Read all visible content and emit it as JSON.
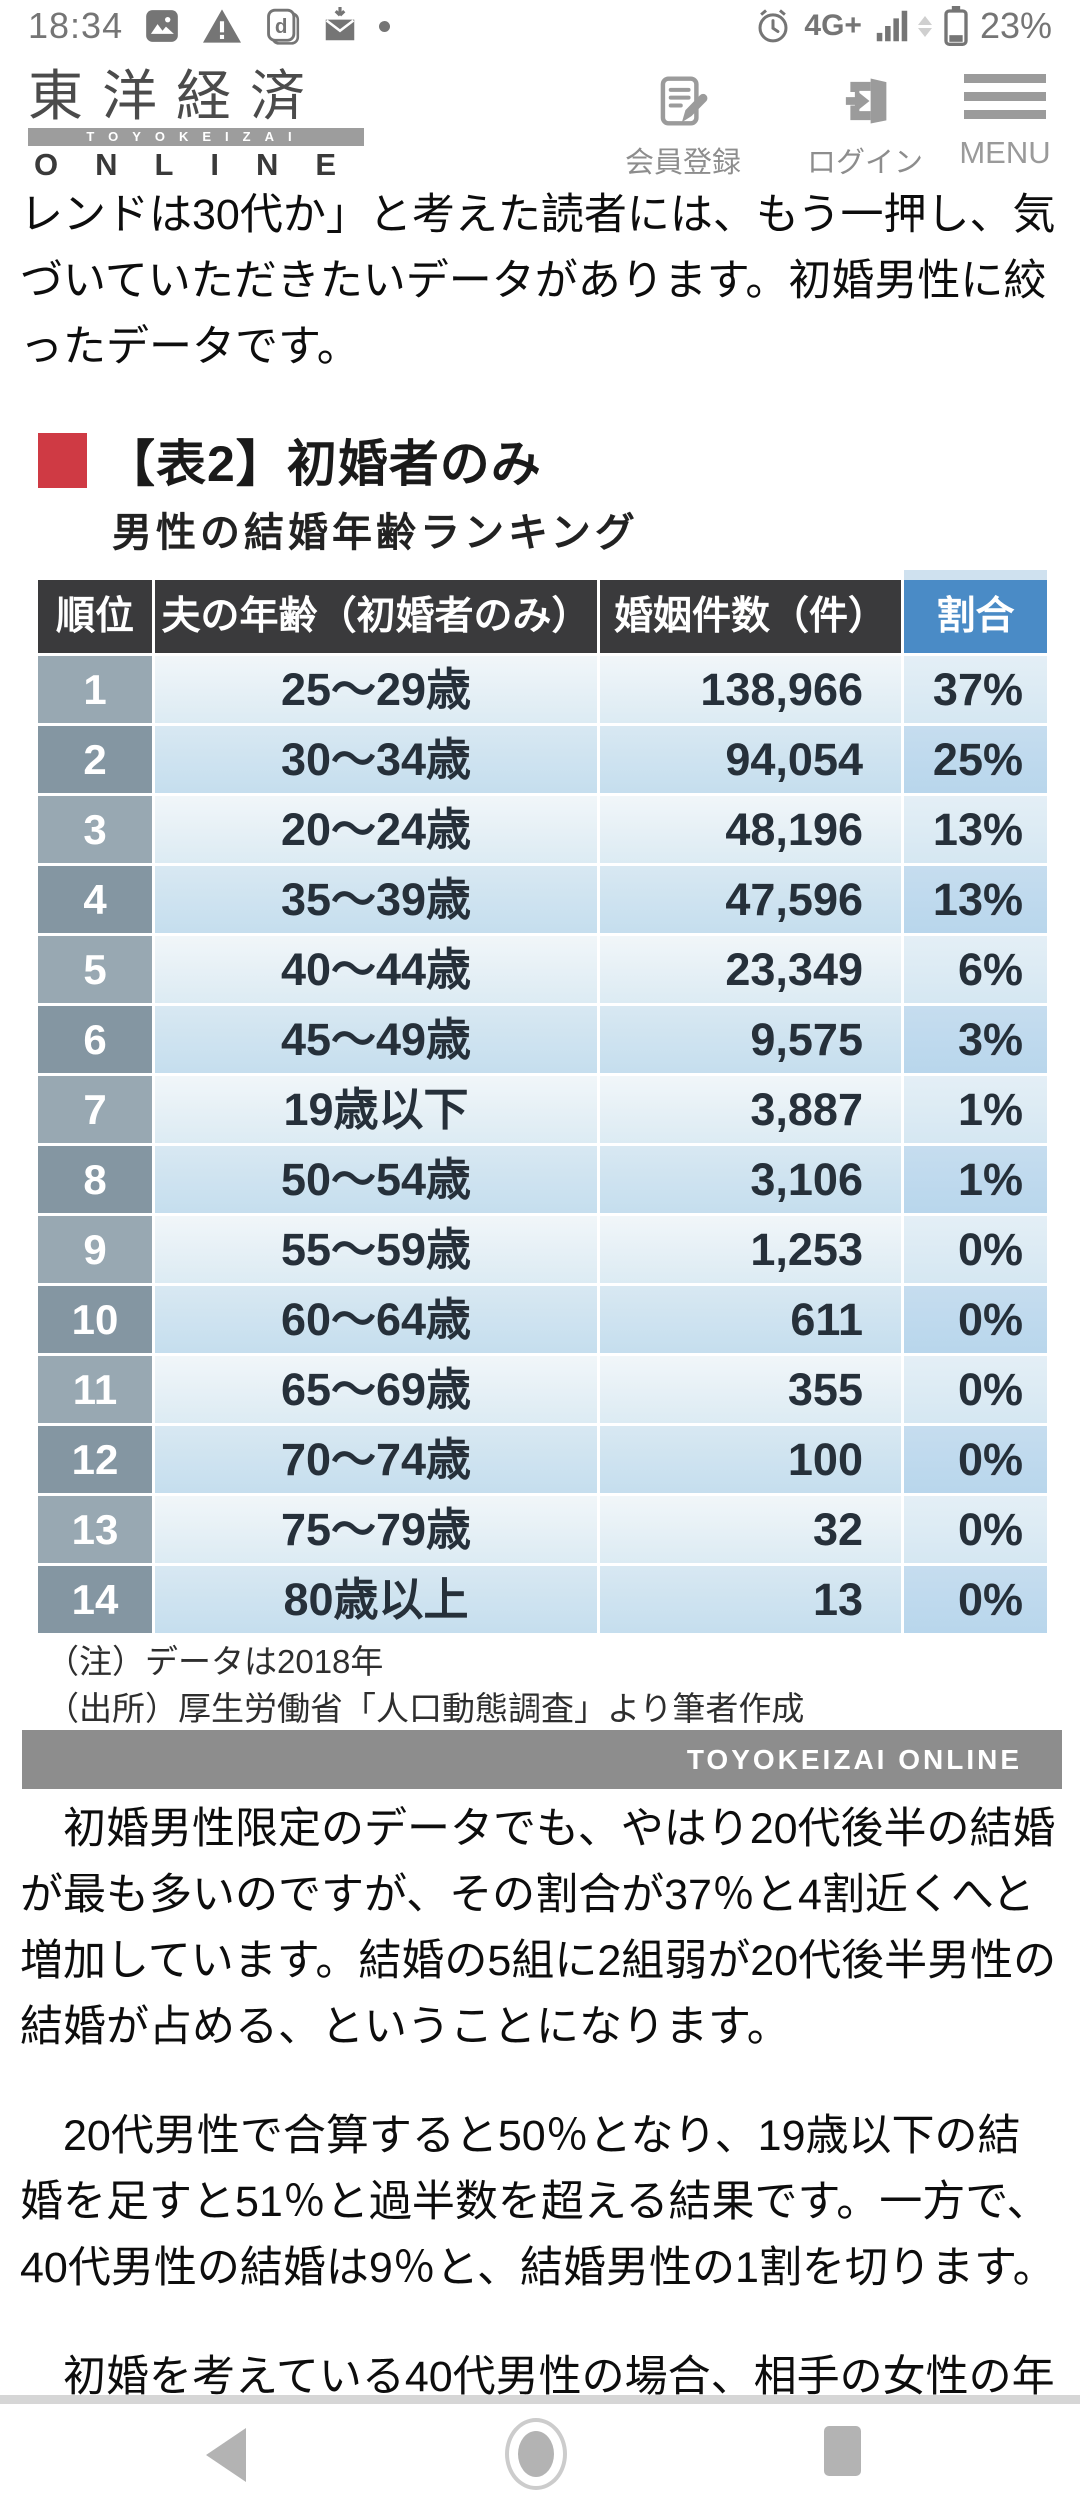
{
  "status_bar": {
    "time": "18:34",
    "network": "4G+",
    "battery_percent": "23%"
  },
  "site_header": {
    "logo_kanji": "東洋経済",
    "logo_romaji": "TOYOKEIZAI",
    "logo_online": "ONLINE",
    "actions": {
      "register": "会員登録",
      "login": "ログイン",
      "menu": "MENU"
    }
  },
  "article": {
    "intro_paragraph": "レンドは30代か」と考えた読者には、もう一押し、気づいていただきたいデータがあります。初婚男性に絞ったデータです。",
    "figure": {
      "title": "【表2】初婚者のみ",
      "subtitle": "男性の結婚年齢ランキング",
      "note_line1": "（注）データは2018年",
      "note_line2": "（出所）厚生労働省「人口動態調査」より筆者作成",
      "credit": "TOYOKEIZAI ONLINE"
    },
    "paragraphs": [
      "　初婚男性限定のデータでも、やはり20代後半の結婚が最も多いのですが、その割合が37％と4割近くへと増加しています。結婚の5組に2組弱が20代後半男性の結婚が占める、ということになります。",
      "　20代男性で合算すると50％となり、19歳以下の結婚を足すと51％と過半数を超える結果です。一方で、40代男性の結婚は9％と、結婚男性の1割を切ります。",
      "　初婚を考えている40代男性の場合、相手の女性の年"
    ]
  },
  "chart_data": {
    "type": "table",
    "title": "【表2】初婚者のみ 男性の結婚年齢ランキング",
    "headers": [
      "順位",
      "夫の年齢（初婚者のみ）",
      "婚姻件数（件）",
      "割合"
    ],
    "rows": [
      [
        "1",
        "25～29歳",
        "138,966",
        "37%"
      ],
      [
        "2",
        "30～34歳",
        "94,054",
        "25%"
      ],
      [
        "3",
        "20～24歳",
        "48,196",
        "13%"
      ],
      [
        "4",
        "35～39歳",
        "47,596",
        "13%"
      ],
      [
        "5",
        "40～44歳",
        "23,349",
        "6%"
      ],
      [
        "6",
        "45～49歳",
        "9,575",
        "3%"
      ],
      [
        "7",
        "19歳以下",
        "3,887",
        "1%"
      ],
      [
        "8",
        "50～54歳",
        "3,106",
        "1%"
      ],
      [
        "9",
        "55～59歳",
        "1,253",
        "0%"
      ],
      [
        "10",
        "60～64歳",
        "611",
        "0%"
      ],
      [
        "11",
        "65～69歳",
        "355",
        "0%"
      ],
      [
        "12",
        "70～74歳",
        "100",
        "0%"
      ],
      [
        "13",
        "75～79歳",
        "32",
        "0%"
      ],
      [
        "14",
        "80歳以上",
        "13",
        "0%"
      ]
    ],
    "source_note": "（出所）厚生労働省「人口動態調査」より筆者作成",
    "data_year_note": "（注）データは2018年"
  },
  "colors": {
    "accent_red": "#cf3a44",
    "table_header_dark": "#3a3a3c",
    "table_header_blue": "#4a8bc6",
    "rank_col_odd": "#98a8b2",
    "rank_col_even": "#8496a2",
    "banner_gray": "#8d8d8d"
  }
}
